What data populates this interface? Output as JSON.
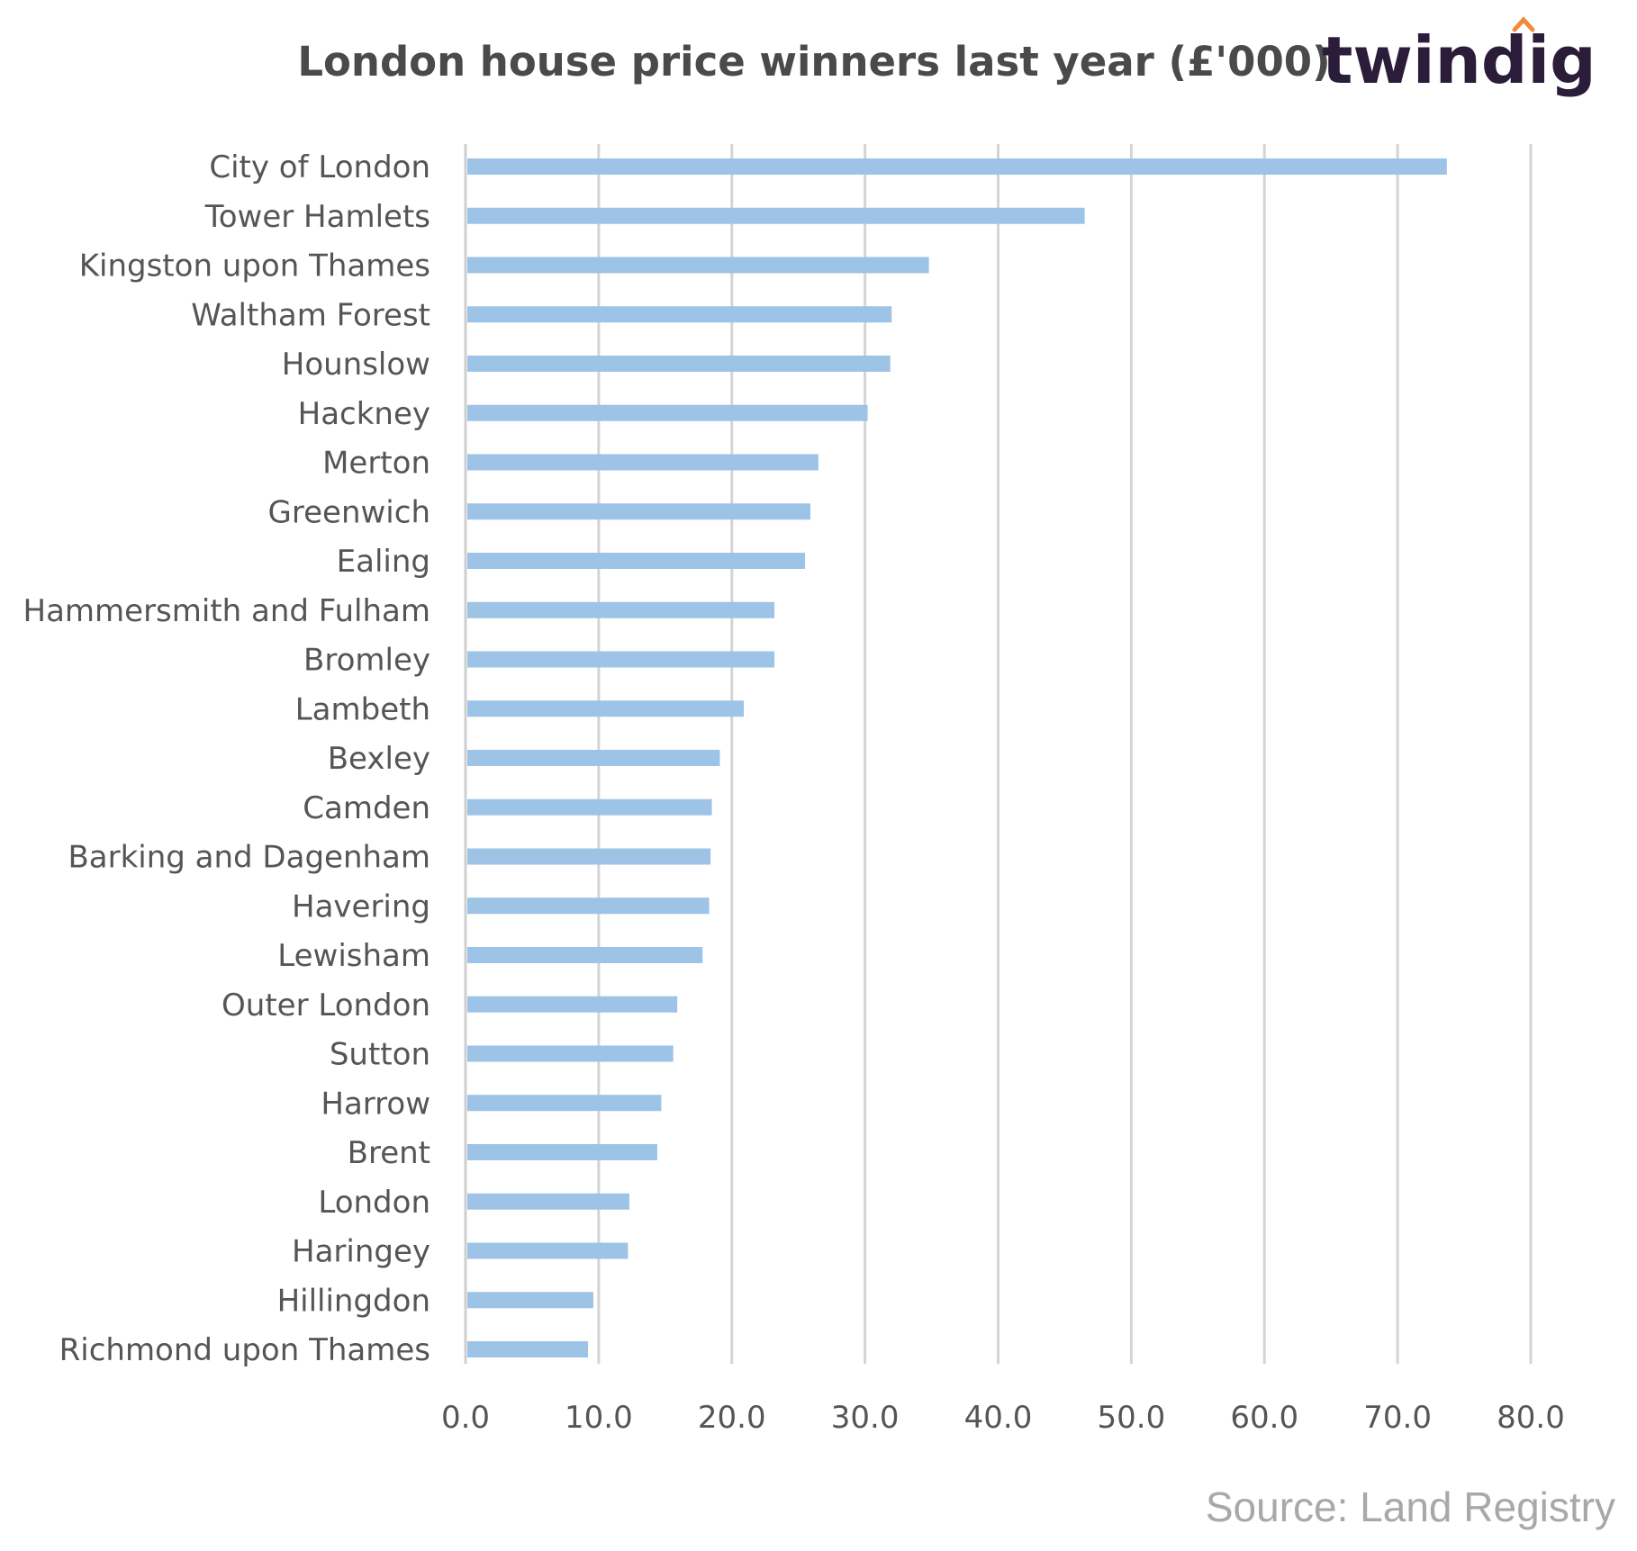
{
  "brand": {
    "logo_text": "twindig",
    "logo_accent_color": "#f08a3c"
  },
  "source_note": "Source: Land Registry",
  "chart_data": {
    "type": "bar",
    "orientation": "horizontal",
    "title": "London house price winners last year (£'000)",
    "xlabel": "",
    "ylabel": "",
    "xlim": [
      0,
      80
    ],
    "grid": true,
    "legend": "none",
    "bar_color": "#9dc3e6",
    "x_ticks": [
      "0.0",
      "10.0",
      "20.0",
      "30.0",
      "40.0",
      "50.0",
      "60.0",
      "70.0",
      "80.0"
    ],
    "categories": [
      "City of London",
      "Tower Hamlets",
      "Kingston upon Thames",
      "Waltham Forest",
      "Hounslow",
      "Hackney",
      "Merton",
      "Greenwich",
      "Ealing",
      "Hammersmith and Fulham",
      "Bromley",
      "Lambeth",
      "Bexley",
      "Camden",
      "Barking and Dagenham",
      "Havering",
      "Lewisham",
      "Outer London",
      "Sutton",
      "Harrow",
      "Brent",
      "London",
      "Haringey",
      "Hillingdon",
      "Richmond upon Thames"
    ],
    "values": [
      73.7,
      46.5,
      34.8,
      32.0,
      31.9,
      30.2,
      26.5,
      25.9,
      25.5,
      23.2,
      23.2,
      20.9,
      19.1,
      18.5,
      18.4,
      18.3,
      17.8,
      15.9,
      15.6,
      14.7,
      14.4,
      12.3,
      12.2,
      9.6,
      9.2
    ]
  }
}
